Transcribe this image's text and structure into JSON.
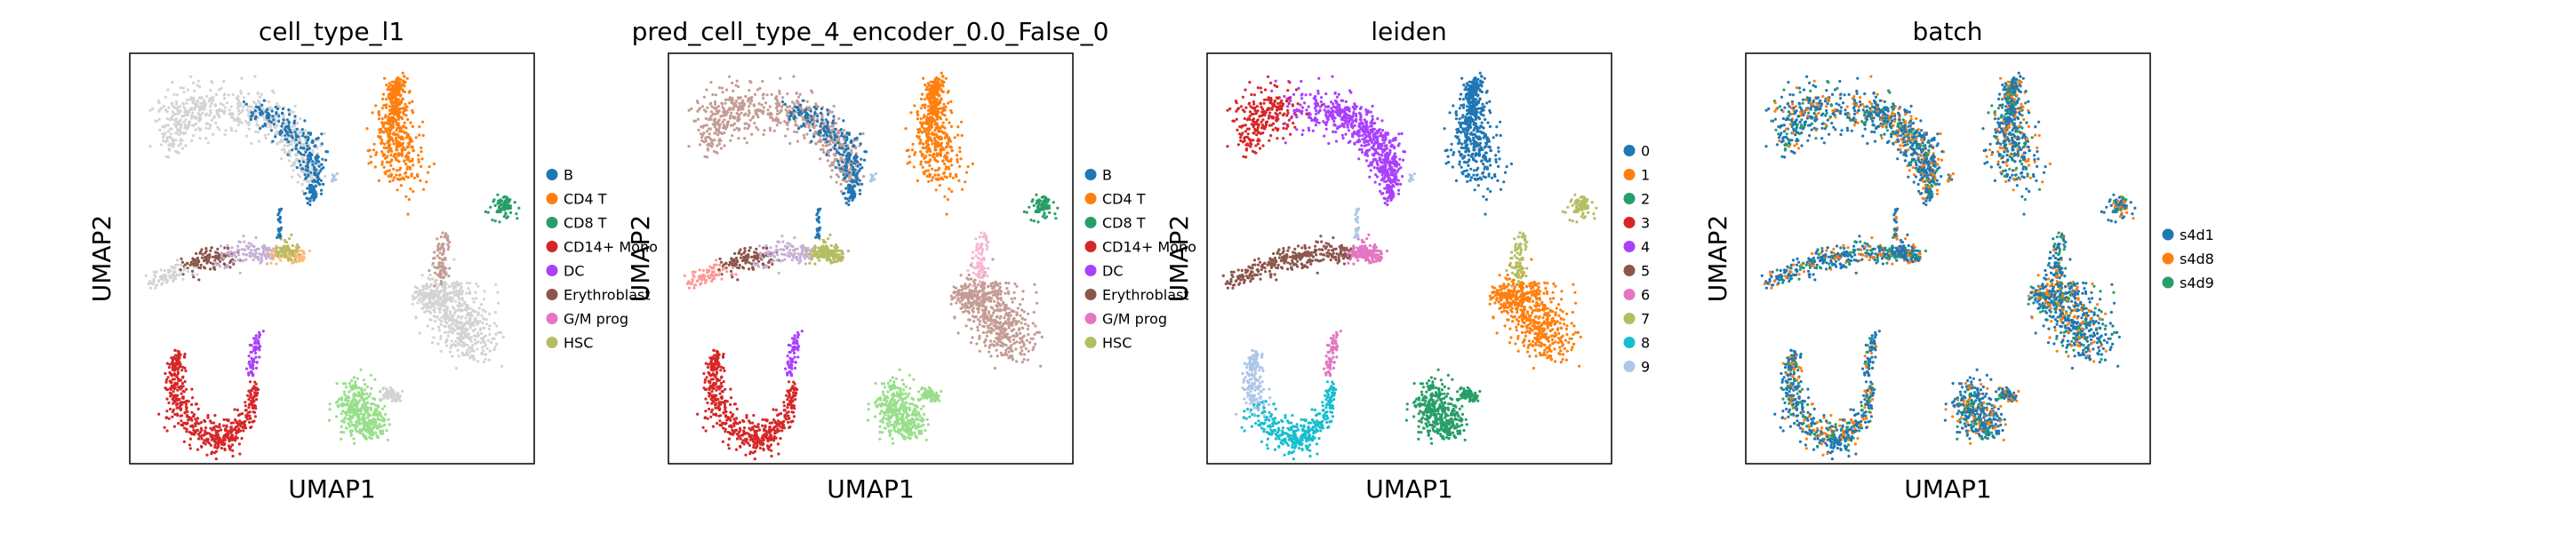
{
  "chart_data": [
    {
      "type": "scatter",
      "title": "cell_type_l1",
      "xlabel": "UMAP1",
      "ylabel": "UMAP2",
      "grid": false,
      "legend_position": "right",
      "categories": [
        "B",
        "CD4 T",
        "CD8 T",
        "CD14+ Mono",
        "DC",
        "Erythroblast",
        "G/M prog",
        "HSC"
      ],
      "colors": [
        "#1f77b4",
        "#ff7f0e",
        "#279e68",
        "#d62728",
        "#aa40fc",
        "#8c564b",
        "#e377c2",
        "#b5bd61"
      ]
    },
    {
      "type": "scatter",
      "title": "pred_cell_type_4_encoder_0.0_False_0",
      "xlabel": "UMAP1",
      "ylabel": "UMAP2",
      "grid": false,
      "legend_position": "right",
      "categories": [
        "B",
        "CD4 T",
        "CD8 T",
        "CD14+ Mono",
        "DC",
        "Erythroblast",
        "G/M prog",
        "HSC"
      ],
      "colors": [
        "#1f77b4",
        "#ff7f0e",
        "#279e68",
        "#d62728",
        "#aa40fc",
        "#8c564b",
        "#e377c2",
        "#b5bd61"
      ]
    },
    {
      "type": "scatter",
      "title": "leiden",
      "xlabel": "UMAP1",
      "ylabel": "UMAP2",
      "grid": false,
      "legend_position": "right",
      "categories": [
        "0",
        "1",
        "2",
        "3",
        "4",
        "5",
        "6",
        "7",
        "8",
        "9"
      ],
      "colors": [
        "#1f77b4",
        "#ff7f0e",
        "#279e68",
        "#d62728",
        "#aa40fc",
        "#8c564b",
        "#e377c2",
        "#b5bd61",
        "#17becf",
        "#aec7e8"
      ]
    },
    {
      "type": "scatter",
      "title": "batch",
      "xlabel": "UMAP1",
      "ylabel": "UMAP2",
      "grid": false,
      "legend_position": "right",
      "categories": [
        "s4d1",
        "s4d8",
        "s4d9"
      ],
      "colors": [
        "#1f77b4",
        "#ff7f0e",
        "#279e68"
      ]
    }
  ],
  "colors": {
    "unassigned": "#d3d3d3",
    "pred_extra": "#c49c94",
    "pred_light_green": "#98df8a"
  }
}
